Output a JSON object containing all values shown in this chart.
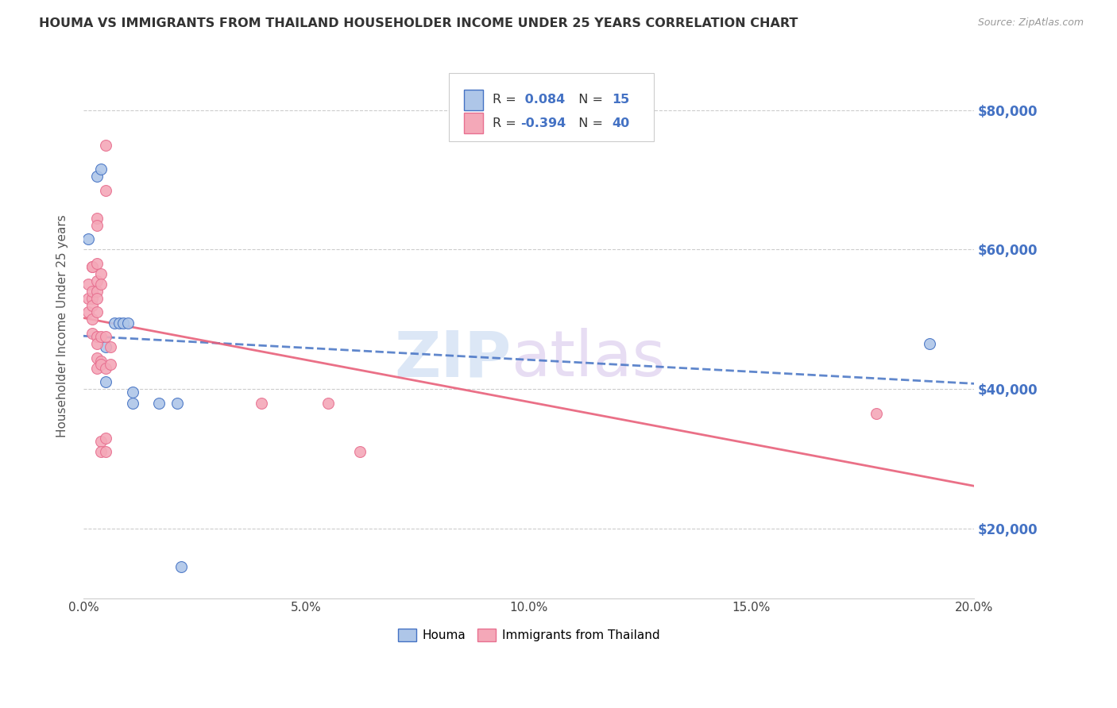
{
  "title": "HOUMA VS IMMIGRANTS FROM THAILAND HOUSEHOLDER INCOME UNDER 25 YEARS CORRELATION CHART",
  "source": "Source: ZipAtlas.com",
  "ylabel": "Householder Income Under 25 years",
  "xlim": [
    0.0,
    0.2
  ],
  "ylim": [
    10000,
    88000
  ],
  "ytick_labels": [
    "$20,000",
    "$40,000",
    "$60,000",
    "$80,000"
  ],
  "ytick_values": [
    20000,
    40000,
    60000,
    80000
  ],
  "xtick_labels": [
    "0.0%",
    "5.0%",
    "10.0%",
    "15.0%",
    "20.0%"
  ],
  "xtick_values": [
    0.0,
    0.05,
    0.1,
    0.15,
    0.2
  ],
  "legend_labels": [
    "Houma",
    "Immigrants from Thailand"
  ],
  "houma_fill_color": "#aec6e8",
  "thailand_fill_color": "#f4a8b8",
  "houma_edge_color": "#4472c4",
  "thailand_edge_color": "#e87090",
  "houma_line_color": "#4472c4",
  "thailand_line_color": "#e8607a",
  "right_axis_color": "#4472c4",
  "houma_R": 0.084,
  "houma_N": 15,
  "thailand_R": -0.394,
  "thailand_N": 40,
  "watermark_zip": "ZIP",
  "watermark_atlas": "atlas",
  "houma_scatter": [
    [
      0.001,
      61500
    ],
    [
      0.003,
      70500
    ],
    [
      0.004,
      71500
    ],
    [
      0.005,
      46000
    ],
    [
      0.005,
      41000
    ],
    [
      0.007,
      49500
    ],
    [
      0.008,
      49500
    ],
    [
      0.009,
      49500
    ],
    [
      0.01,
      49500
    ],
    [
      0.011,
      38000
    ],
    [
      0.011,
      39500
    ],
    [
      0.017,
      38000
    ],
    [
      0.021,
      38000
    ],
    [
      0.022,
      14500
    ],
    [
      0.19,
      46500
    ]
  ],
  "thailand_scatter": [
    [
      0.001,
      51000
    ],
    [
      0.001,
      53000
    ],
    [
      0.001,
      55000
    ],
    [
      0.002,
      57500
    ],
    [
      0.002,
      57500
    ],
    [
      0.002,
      53000
    ],
    [
      0.002,
      54000
    ],
    [
      0.002,
      52000
    ],
    [
      0.002,
      50000
    ],
    [
      0.002,
      48000
    ],
    [
      0.003,
      58000
    ],
    [
      0.003,
      55500
    ],
    [
      0.003,
      54000
    ],
    [
      0.003,
      53000
    ],
    [
      0.003,
      51000
    ],
    [
      0.003,
      64500
    ],
    [
      0.003,
      63500
    ],
    [
      0.003,
      47500
    ],
    [
      0.003,
      46500
    ],
    [
      0.003,
      44500
    ],
    [
      0.003,
      43000
    ],
    [
      0.004,
      56500
    ],
    [
      0.004,
      55000
    ],
    [
      0.004,
      47500
    ],
    [
      0.004,
      44000
    ],
    [
      0.004,
      43500
    ],
    [
      0.004,
      32500
    ],
    [
      0.004,
      31000
    ],
    [
      0.005,
      75000
    ],
    [
      0.005,
      68500
    ],
    [
      0.005,
      47500
    ],
    [
      0.005,
      43000
    ],
    [
      0.005,
      33000
    ],
    [
      0.005,
      31000
    ],
    [
      0.006,
      43500
    ],
    [
      0.006,
      46000
    ],
    [
      0.04,
      38000
    ],
    [
      0.055,
      38000
    ],
    [
      0.062,
      31000
    ],
    [
      0.178,
      36500
    ]
  ]
}
